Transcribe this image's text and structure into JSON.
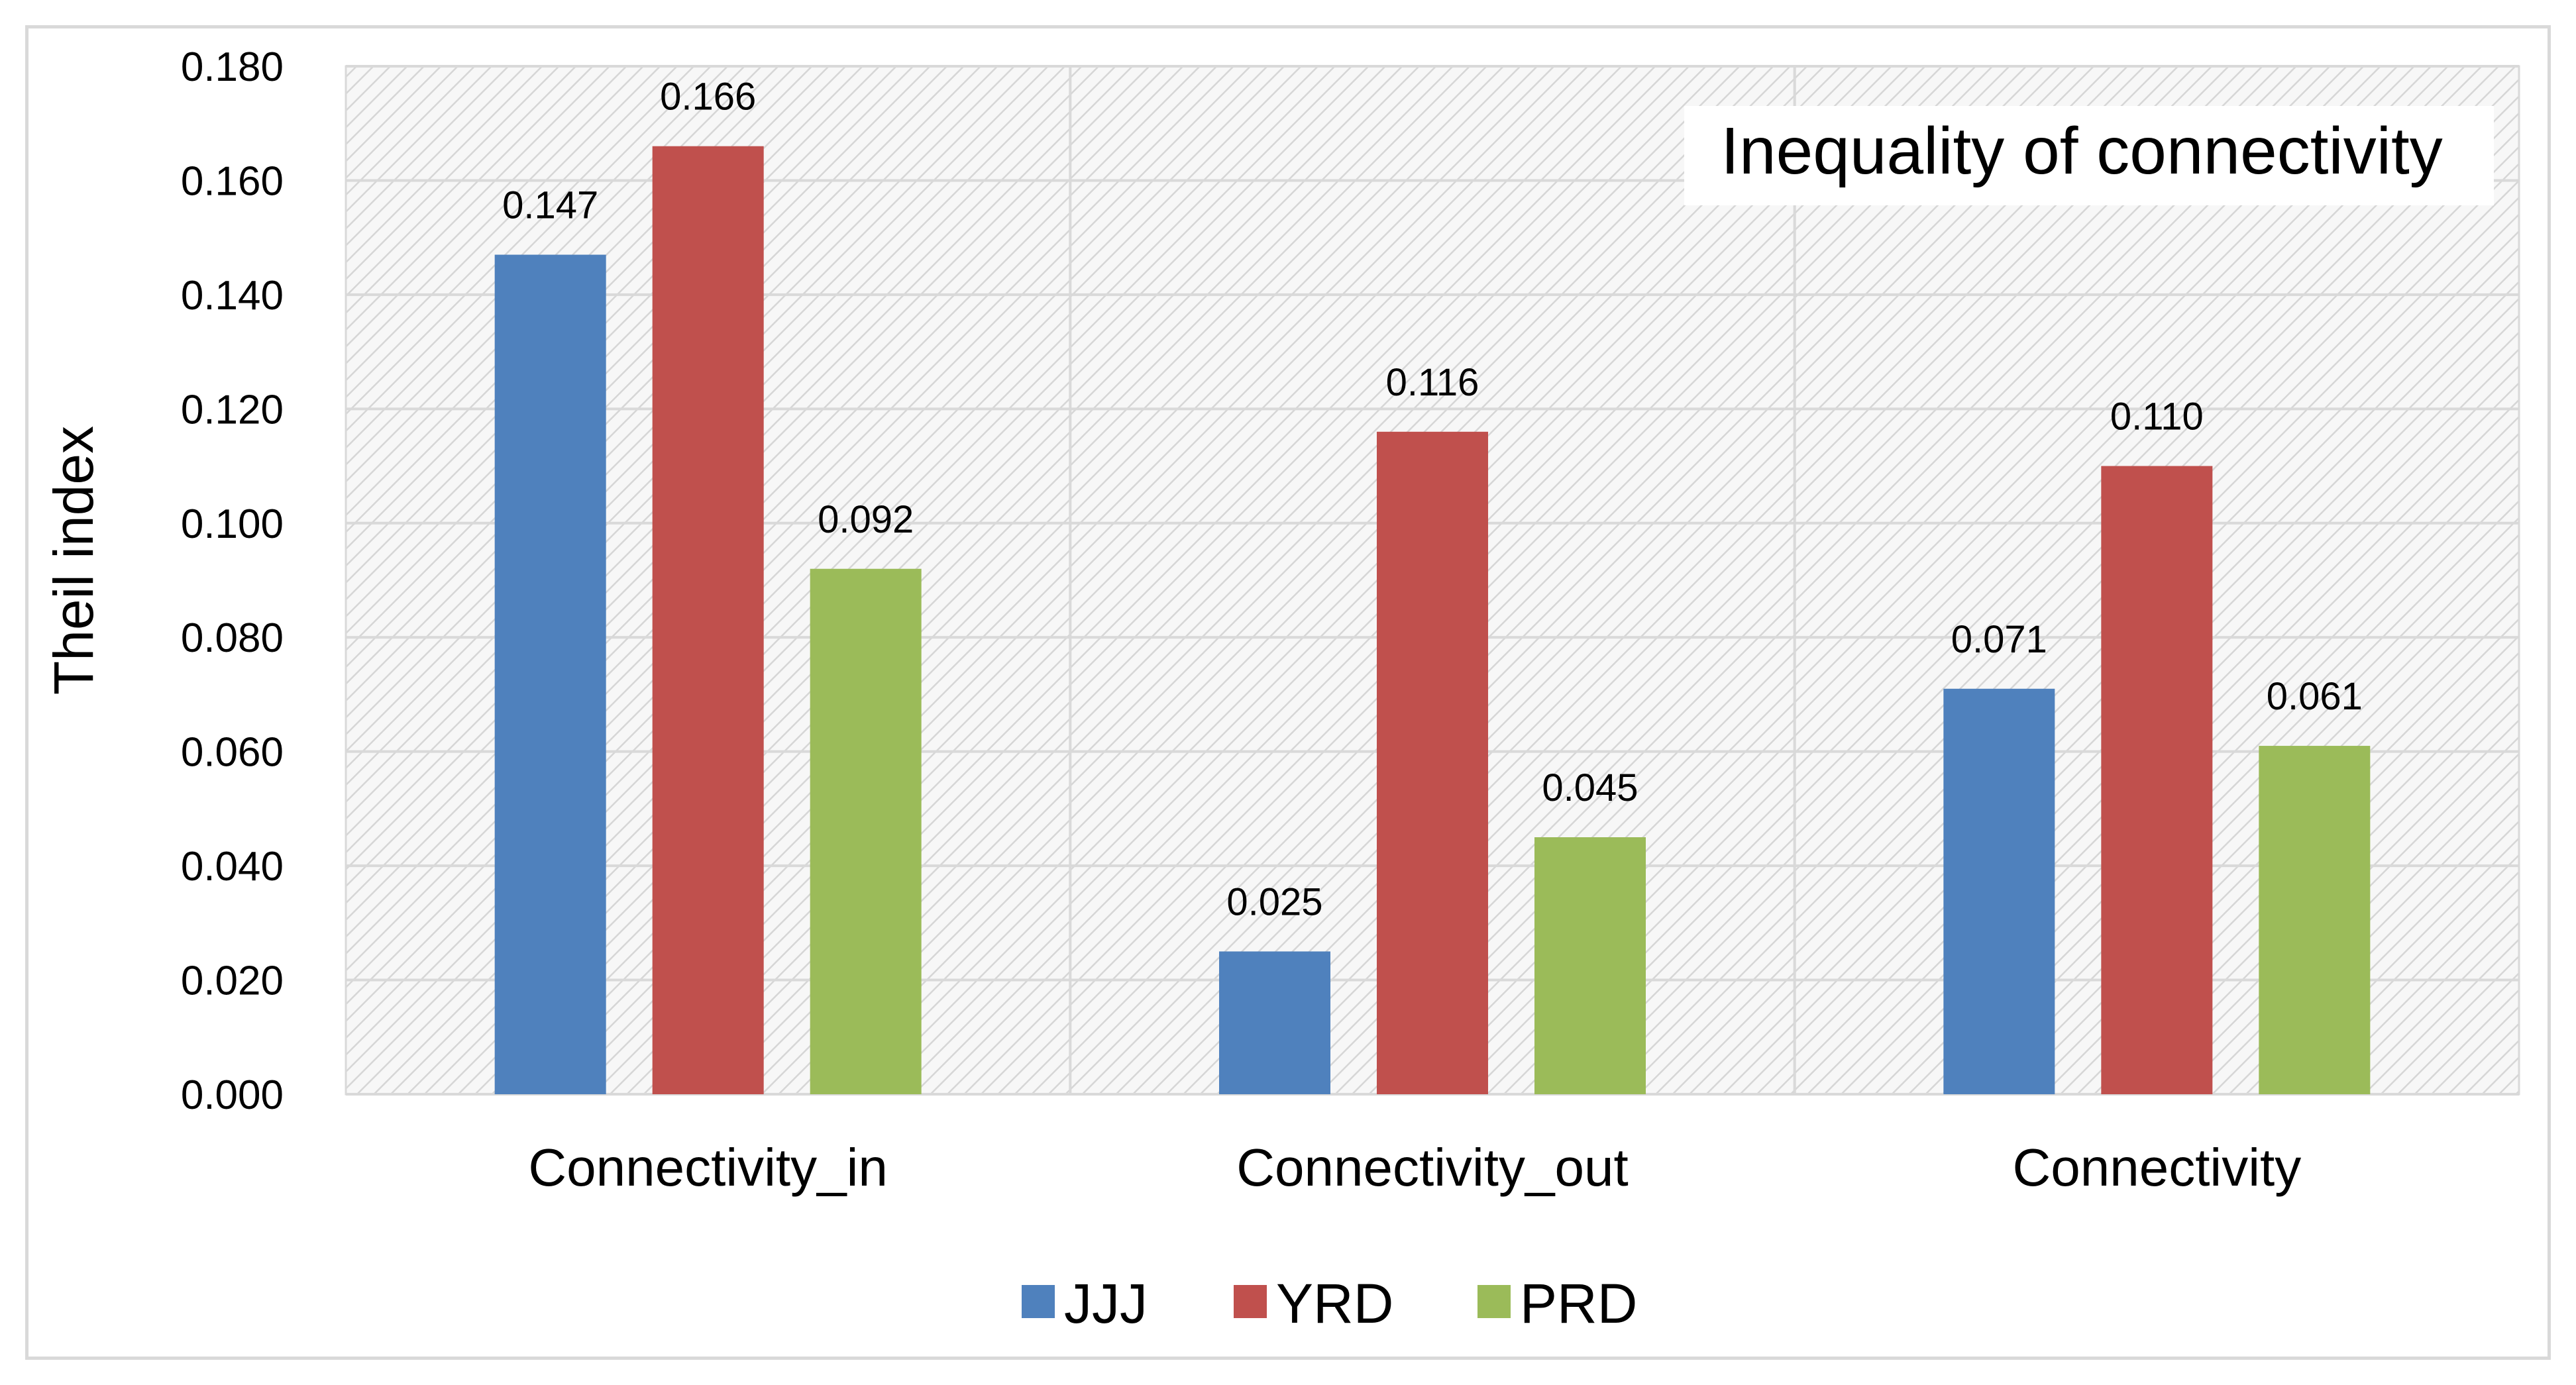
{
  "chart_data": {
    "type": "bar",
    "title": "Inequality of connectivity",
    "xlabel": "",
    "ylabel": "Theil index",
    "ylim": [
      0,
      0.18
    ],
    "yticks": [
      "0.000",
      "0.020",
      "0.040",
      "0.060",
      "0.080",
      "0.100",
      "0.120",
      "0.140",
      "0.160",
      "0.180"
    ],
    "categories": [
      "Connectivity_in",
      "Connectivity_out",
      "Connectivity"
    ],
    "series": [
      {
        "name": "JJJ",
        "color": "#4f81bd",
        "values": [
          0.147,
          0.025,
          0.071
        ],
        "labels": [
          "0.147",
          "0.025",
          "0.071"
        ]
      },
      {
        "name": "YRD",
        "color": "#c0504d",
        "values": [
          0.166,
          0.116,
          0.11
        ],
        "labels": [
          "0.166",
          "0.116",
          "0.110"
        ]
      },
      {
        "name": "PRD",
        "color": "#9bbb59",
        "values": [
          0.092,
          0.045,
          0.061
        ],
        "labels": [
          "0.092",
          "0.045",
          "0.061"
        ]
      }
    ],
    "legend": "bottom",
    "grid": true
  }
}
